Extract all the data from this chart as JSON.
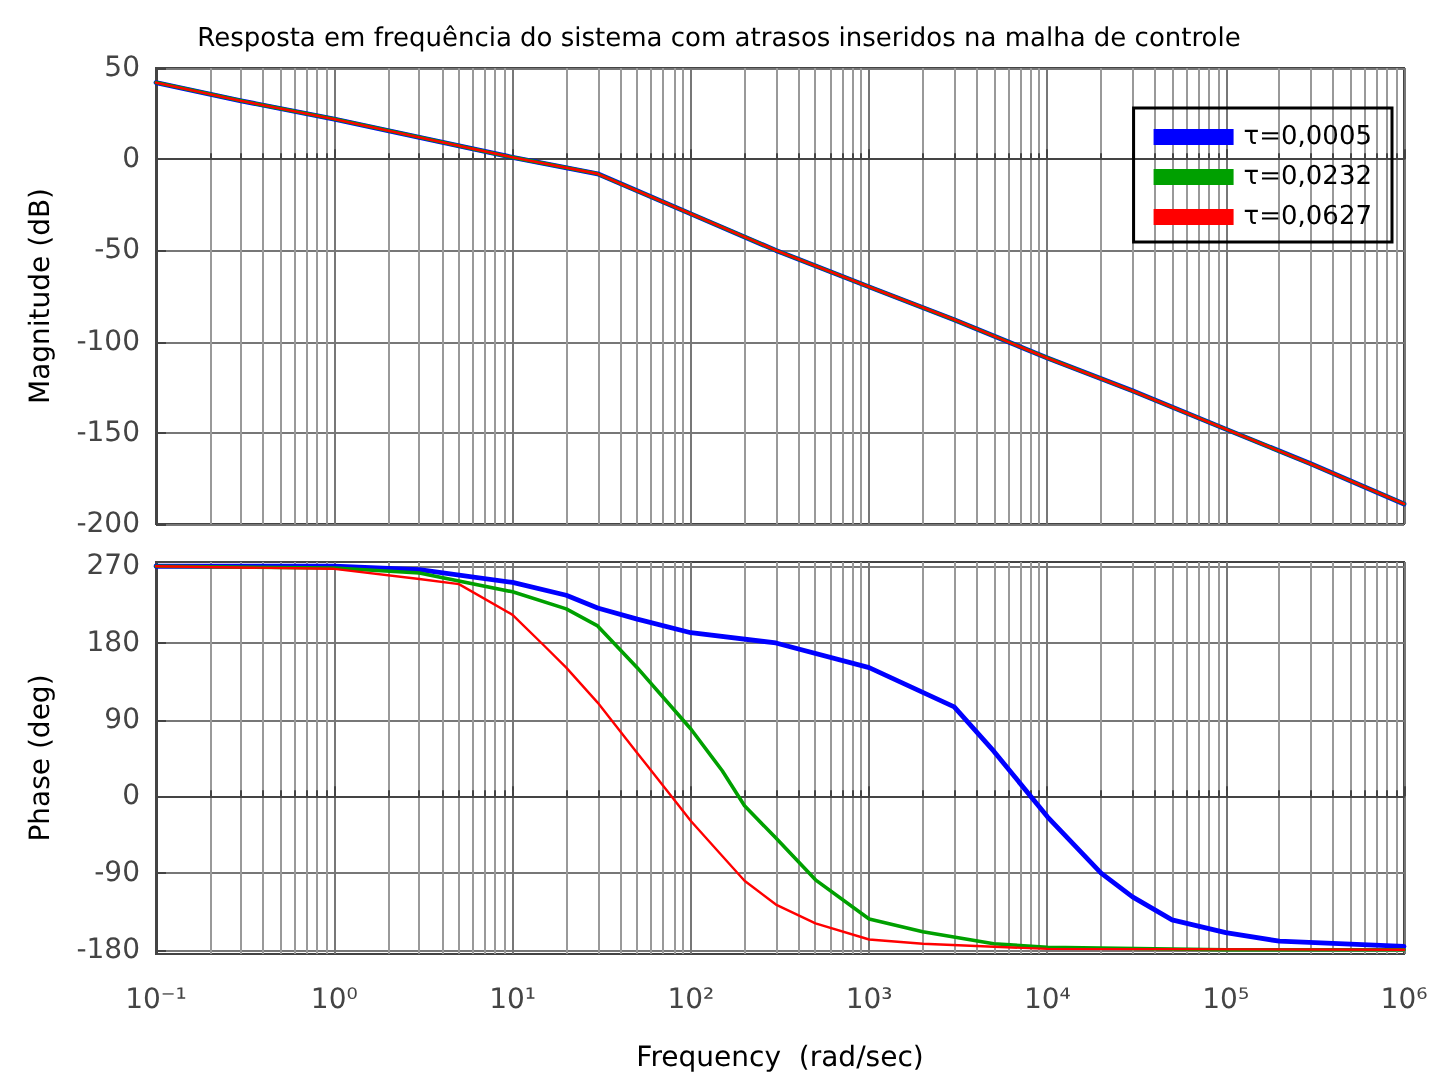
{
  "chart_data": [
    {
      "type": "line",
      "title": "Resposta em frequência do sistema com atrasos inseridos na malha de controle",
      "ylabel": "Magnitude (dB)",
      "log": "x",
      "grid": true,
      "legend": "top right",
      "tick_labels": "y",
      "marker": "none",
      "line_style": "solid",
      "xlim": [
        0.1,
        1000000
      ],
      "xticks": [
        {
          "value": 0.1,
          "label": null
        },
        {
          "value": 1,
          "label": null
        },
        {
          "value": 10,
          "label": null
        },
        {
          "value": 100,
          "label": null
        },
        {
          "value": 1000,
          "label": null
        },
        {
          "value": 10000,
          "label": null
        },
        {
          "value": 100000,
          "label": null
        },
        {
          "value": 1000000,
          "label": null
        }
      ],
      "ylim": [
        -200,
        50
      ],
      "yticks": [
        -200,
        -150,
        -100,
        -50,
        0,
        50
      ],
      "series": [
        {
          "name": "τ=0,0005",
          "color": "#0000ff",
          "x": [
            0.1,
            0.3,
            1,
            3,
            10,
            30,
            100,
            300,
            1000,
            3000,
            10000,
            30000,
            100000,
            300000,
            1000000
          ],
          "values": [
            42,
            32,
            22,
            12,
            1,
            -8,
            -30,
            -50,
            -70,
            -88,
            -109,
            -127,
            -148,
            -167,
            -189
          ]
        },
        {
          "name": "τ=0,0232",
          "color": "#00a000",
          "x": [
            0.1,
            0.3,
            1,
            3,
            10,
            30,
            100,
            300,
            1000,
            3000,
            10000,
            30000,
            100000,
            300000,
            1000000
          ],
          "values": [
            42,
            32,
            22,
            12,
            1,
            -8,
            -30,
            -50,
            -70,
            -88,
            -109,
            -127,
            -148,
            -167,
            -189
          ]
        },
        {
          "name": "τ=0,0627",
          "color": "#ff0000",
          "x": [
            0.1,
            0.3,
            1,
            3,
            10,
            30,
            100,
            300,
            1000,
            3000,
            10000,
            30000,
            100000,
            300000,
            1000000
          ],
          "values": [
            42,
            32,
            22,
            12,
            1,
            -8,
            -30,
            -50,
            -70,
            -88,
            -109,
            -127,
            -148,
            -167,
            -189
          ]
        }
      ]
    },
    {
      "type": "line",
      "xlabel": "Frequency  (rad/sec)",
      "ylabel": "Phase (deg)",
      "log": "x",
      "grid": true,
      "marker": "none",
      "line_style": "solid",
      "xlim": [
        0.1,
        1000000
      ],
      "xticks": [
        {
          "value": 0.1,
          "label": "10⁻¹"
        },
        {
          "value": 1,
          "label": "10⁰"
        },
        {
          "value": 10,
          "label": "10¹"
        },
        {
          "value": 100,
          "label": "10²"
        },
        {
          "value": 1000,
          "label": "10³"
        },
        {
          "value": 10000,
          "label": "10⁴"
        },
        {
          "value": 100000,
          "label": "10⁵"
        },
        {
          "value": 1000000,
          "label": "10⁶"
        }
      ],
      "ylim": [
        -185,
        275
      ],
      "yticks": [
        -180,
        -90,
        0,
        90,
        180,
        270
      ],
      "series": [
        {
          "color": "#0000ff",
          "x": [
            0.1,
            1,
            3,
            10,
            20,
            30,
            50,
            100,
            300,
            1000,
            3000,
            5000,
            10000,
            20000,
            30000,
            50000,
            100000,
            200000,
            1000000
          ],
          "values": [
            270,
            270,
            266,
            251,
            236,
            221,
            208,
            192,
            180,
            151,
            105,
            53,
            -24,
            -90,
            -118,
            -145,
            -160,
            -170,
            -176
          ]
        },
        {
          "color": "#00a000",
          "x": [
            0.1,
            1,
            3,
            10,
            20,
            30,
            50,
            100,
            150,
            200,
            300,
            500,
            1000,
            2000,
            5000,
            10000,
            100000,
            1000000
          ],
          "values": [
            270,
            268,
            262,
            240,
            220,
            200,
            151,
            79,
            30,
            -11,
            -49,
            -98,
            -144,
            -159,
            -173,
            -177,
            -180,
            -180
          ]
        },
        {
          "color": "#ff0000",
          "x": [
            0.1,
            1,
            3,
            5,
            10,
            15,
            20,
            30,
            50,
            80,
            100,
            150,
            200,
            300,
            500,
            1000,
            2000,
            10000,
            1000000
          ],
          "values": [
            270,
            267,
            255,
            249,
            213,
            177,
            151,
            110,
            51,
            -3,
            -29,
            -70,
            -99,
            -127,
            -149,
            -168,
            -173,
            -179,
            -180
          ]
        }
      ]
    }
  ]
}
